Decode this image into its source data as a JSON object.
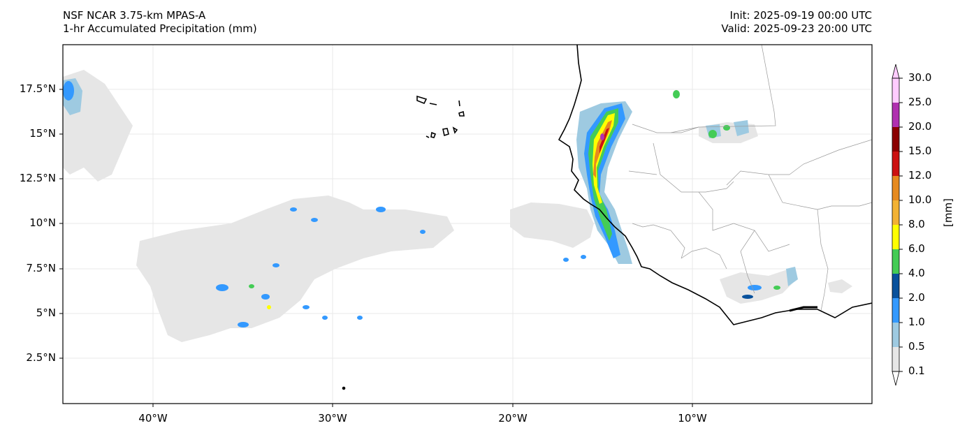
{
  "header": {
    "left_line1": "NSF NCAR 3.75-km MPAS-A",
    "left_line2": "1-hr Accumulated Precipitation (mm)",
    "right_line1": "Init: 2025-09-19 00:00 UTC",
    "right_line2": "Valid: 2025-09-23 20:00 UTC"
  },
  "axes": {
    "lat_labels": [
      "17.5°N",
      "15°N",
      "12.5°N",
      "10°N",
      "7.5°N",
      "5°N",
      "2.5°N"
    ],
    "lon_labels": [
      "40°W",
      "30°W",
      "20°W",
      "10°W"
    ]
  },
  "colorbar": {
    "unit": "[mm]",
    "levels": [
      "0.1",
      "0.5",
      "1.0",
      "2.0",
      "4.0",
      "6.0",
      "8.0",
      "10.0",
      "12.0",
      "15.0",
      "20.0",
      "25.0",
      "30.0"
    ],
    "colors": [
      "#e6e6e6",
      "#9ecae1",
      "#3399ff",
      "#08519c",
      "#44cc55",
      "#ffff00",
      "#f2b233",
      "#e68a1f",
      "#cc1111",
      "#8b0000",
      "#b030b0",
      "#ffccff"
    ]
  }
}
